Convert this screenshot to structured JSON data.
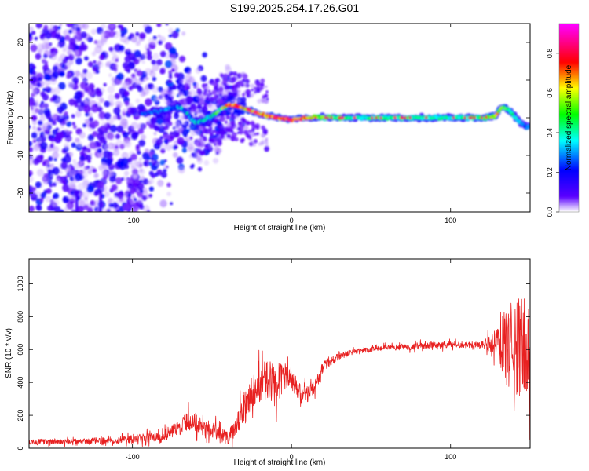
{
  "figure": {
    "title": "S199.2025.254.17.26.G01"
  },
  "chart_data": [
    {
      "type": "heatmap",
      "xlabel": "Height of straight line (km)",
      "ylabel": "Frequency (Hz)",
      "xlim": [
        -165,
        150
      ],
      "ylim": [
        -25,
        25
      ],
      "xticks": [
        -100,
        0,
        100
      ],
      "yticks": [
        -20,
        -10,
        0,
        10,
        20
      ],
      "grid": false,
      "colorbar": {
        "label": "Normalized spectral amplitude",
        "range": [
          0,
          0.95
        ],
        "ticks": [
          0.0,
          0.2,
          0.4,
          0.6,
          0.8
        ],
        "colormap": [
          "#ffffff",
          "#5a00ff",
          "#0000ff",
          "#00ffff",
          "#00ff00",
          "#ffff00",
          "#ff0000",
          "#ff00ff"
        ]
      },
      "ridge": {
        "x": [
          -95,
          -80,
          -70,
          -60,
          -50,
          -45,
          -40,
          -35,
          -30,
          -20,
          -10,
          0,
          10,
          20,
          40,
          60,
          80,
          100,
          120,
          128,
          133,
          138,
          143,
          148
        ],
        "y": [
          1.0,
          2.0,
          3.0,
          -1.5,
          0.5,
          2.0,
          3.5,
          3.0,
          2.5,
          1.0,
          0.0,
          -0.5,
          0.0,
          0.0,
          0.0,
          0.0,
          0.0,
          0.0,
          0.0,
          0.5,
          3.0,
          1.5,
          -1.0,
          -2.5
        ],
        "amplitude": [
          0.3,
          0.35,
          0.4,
          0.45,
          0.5,
          0.6,
          0.85,
          0.8,
          0.75,
          0.8,
          0.85,
          0.85,
          0.8,
          0.55,
          0.45,
          0.45,
          0.45,
          0.45,
          0.5,
          0.7,
          0.6,
          0.5,
          0.4,
          0.3
        ]
      },
      "noise_region_x": [
        -165,
        -90
      ]
    },
    {
      "type": "line",
      "xlabel": "Height of straight line (km)",
      "ylabel": "SNR (10 * v/v)",
      "xlim": [
        -165,
        150
      ],
      "ylim": [
        0,
        1150
      ],
      "xticks": [
        -100,
        0,
        100
      ],
      "yticks": [
        0,
        200,
        400,
        600,
        800,
        1000
      ],
      "grid": false,
      "series": [
        {
          "color": "#e82020",
          "x": [
            -165,
            -140,
            -120,
            -100,
            -85,
            -75,
            -70,
            -65,
            -60,
            -50,
            -45,
            -40,
            -35,
            -30,
            -25,
            -20,
            -15,
            -10,
            -5,
            0,
            5,
            10,
            15,
            20,
            30,
            40,
            60,
            80,
            100,
            120,
            130,
            135,
            140,
            145,
            150
          ],
          "y": [
            40,
            40,
            45,
            55,
            70,
            100,
            130,
            170,
            150,
            110,
            90,
            60,
            120,
            250,
            350,
            380,
            420,
            380,
            440,
            400,
            340,
            330,
            380,
            500,
            560,
            590,
            610,
            620,
            630,
            630,
            640,
            620,
            600,
            620,
            650
          ],
          "spread": [
            20,
            20,
            25,
            30,
            40,
            50,
            60,
            70,
            70,
            60,
            60,
            50,
            80,
            120,
            120,
            140,
            150,
            160,
            120,
            80,
            70,
            60,
            50,
            40,
            25,
            20,
            20,
            25,
            25,
            25,
            120,
            300,
            380,
            380,
            400
          ]
        }
      ]
    }
  ]
}
